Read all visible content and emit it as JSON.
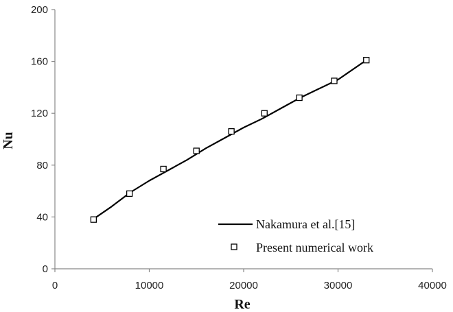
{
  "chart_data": {
    "type": "scatter",
    "title": "",
    "xlabel": "Re",
    "ylabel": "Nu",
    "xlim": [
      0,
      40000
    ],
    "ylim": [
      0,
      200
    ],
    "xticks": [
      0,
      10000,
      20000,
      30000,
      40000
    ],
    "yticks": [
      0,
      40,
      80,
      120,
      160,
      200
    ],
    "grid": false,
    "legend_position": "bottom-right",
    "series": [
      {
        "name": "Nakamura et al.[15]",
        "style": "line",
        "color": "#000000",
        "x": [
          4200,
          6000,
          8000,
          10000,
          12000,
          14000,
          16000,
          18000,
          20000,
          22000,
          24000,
          26000,
          28000,
          30000,
          33000
        ],
        "y": [
          39,
          48,
          59,
          68,
          76,
          84,
          93,
          101,
          109,
          116,
          124,
          132,
          139,
          146,
          161
        ]
      },
      {
        "name": "Present numerical work",
        "style": "marker-square-open",
        "color": "#000000",
        "x": [
          4100,
          7900,
          11500,
          15000,
          18700,
          22200,
          25900,
          29600,
          33000
        ],
        "y": [
          38,
          58,
          77,
          91,
          106,
          120,
          132,
          145,
          161
        ]
      }
    ]
  }
}
